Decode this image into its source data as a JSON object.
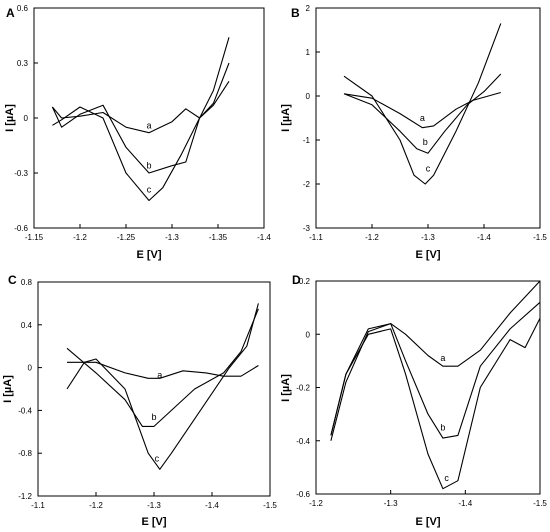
{
  "chart_data": [
    {
      "type": "line",
      "panel_label": "A",
      "xlabel": "E [V]",
      "ylabel": "I [µA]",
      "xlim": [
        -1.15,
        -1.4
      ],
      "ylim": [
        -0.6,
        0.6
      ],
      "xticks": [
        -1.15,
        -1.2,
        -1.25,
        -1.3,
        -1.35,
        -1.4
      ],
      "xtick_labels": [
        "-1.15",
        "-1.2",
        "-1.25",
        "-1.3",
        "-1.35",
        "-1.4"
      ],
      "yticks": [
        -0.6,
        -0.3,
        0,
        0.3,
        0.6
      ],
      "ytick_labels": [
        "-0.6",
        "-0.3",
        "0",
        "0.3",
        "0.6"
      ],
      "series": [
        {
          "name": "a",
          "label_at": [
            -1.275,
            -0.04
          ],
          "x": [
            -1.17,
            -1.18,
            -1.2,
            -1.225,
            -1.25,
            -1.275,
            -1.3,
            -1.315,
            -1.33,
            -1.345,
            -1.362
          ],
          "y": [
            0.06,
            0.0,
            0.01,
            0.03,
            -0.05,
            -0.08,
            -0.02,
            0.05,
            0.0,
            0.07,
            0.2
          ]
        },
        {
          "name": "b",
          "label_at": [
            -1.275,
            -0.26
          ],
          "x": [
            -1.17,
            -1.18,
            -1.2,
            -1.225,
            -1.25,
            -1.275,
            -1.3,
            -1.315,
            -1.33,
            -1.345,
            -1.362
          ],
          "y": [
            0.06,
            -0.05,
            0.02,
            0.07,
            -0.16,
            -0.3,
            -0.26,
            -0.24,
            0.0,
            0.08,
            0.3
          ]
        },
        {
          "name": "c",
          "label_at": [
            -1.275,
            -0.39
          ],
          "x": [
            -1.17,
            -1.18,
            -1.2,
            -1.225,
            -1.25,
            -1.275,
            -1.29,
            -1.31,
            -1.33,
            -1.345,
            -1.362
          ],
          "y": [
            -0.04,
            -0.01,
            0.06,
            0.0,
            -0.3,
            -0.45,
            -0.38,
            -0.2,
            0.0,
            0.15,
            0.44
          ]
        }
      ]
    },
    {
      "type": "line",
      "panel_label": "B",
      "xlabel": "E [V]",
      "ylabel": "I [µA]",
      "xlim": [
        -1.1,
        -1.5
      ],
      "ylim": [
        -3,
        2
      ],
      "xticks": [
        -1.1,
        -1.2,
        -1.3,
        -1.4,
        -1.5
      ],
      "xtick_labels": [
        "-1.1",
        "-1.2",
        "-1.3",
        "-1.4",
        "-1.5"
      ],
      "yticks": [
        -3,
        -2,
        -1,
        0,
        1,
        2
      ],
      "ytick_labels": [
        "-3",
        "-2",
        "-1",
        "0",
        "1",
        "2"
      ],
      "series": [
        {
          "name": "a",
          "label_at": [
            -1.29,
            -0.5
          ],
          "x": [
            -1.15,
            -1.2,
            -1.25,
            -1.29,
            -1.31,
            -1.35,
            -1.38,
            -1.43
          ],
          "y": [
            0.05,
            -0.05,
            -0.4,
            -0.72,
            -0.68,
            -0.3,
            -0.1,
            0.08
          ]
        },
        {
          "name": "b",
          "label_at": [
            -1.295,
            -1.05
          ],
          "x": [
            -1.15,
            -1.2,
            -1.25,
            -1.28,
            -1.3,
            -1.33,
            -1.37,
            -1.4,
            -1.43
          ],
          "y": [
            0.05,
            -0.2,
            -0.8,
            -1.2,
            -1.3,
            -0.8,
            -0.2,
            0.1,
            0.5
          ]
        },
        {
          "name": "c",
          "label_at": [
            -1.3,
            -1.65
          ],
          "x": [
            -1.15,
            -1.2,
            -1.25,
            -1.275,
            -1.295,
            -1.31,
            -1.35,
            -1.39,
            -1.43
          ],
          "y": [
            0.45,
            0.0,
            -1.0,
            -1.8,
            -2.0,
            -1.8,
            -0.8,
            0.3,
            1.65
          ]
        }
      ]
    },
    {
      "type": "line",
      "panel_label": "C",
      "xlabel": "E [V]",
      "ylabel": "I [µA]",
      "xlim": [
        -1.1,
        -1.5
      ],
      "ylim": [
        -1.2,
        0.8
      ],
      "xticks": [
        -1.1,
        -1.2,
        -1.3,
        -1.4,
        -1.5
      ],
      "xtick_labels": [
        "-1.1",
        "-1.2",
        "-1.3",
        "-1.4",
        "-1.5"
      ],
      "yticks": [
        -1.2,
        -0.8,
        -0.4,
        0,
        0.4,
        0.8
      ],
      "ytick_labels": [
        "-1.2",
        "-0.8",
        "-0.4",
        "0",
        "0.4",
        "0.8"
      ],
      "series": [
        {
          "name": "a",
          "label_at": [
            -1.31,
            -0.07
          ],
          "x": [
            -1.15,
            -1.2,
            -1.25,
            -1.29,
            -1.31,
            -1.35,
            -1.39,
            -1.42,
            -1.45,
            -1.48
          ],
          "y": [
            0.05,
            0.05,
            -0.05,
            -0.1,
            -0.1,
            -0.03,
            -0.05,
            -0.08,
            -0.08,
            0.02
          ]
        },
        {
          "name": "b",
          "label_at": [
            -1.3,
            -0.46
          ],
          "x": [
            -1.15,
            -1.2,
            -1.25,
            -1.28,
            -1.3,
            -1.33,
            -1.37,
            -1.42,
            -1.45,
            -1.48
          ],
          "y": [
            0.18,
            -0.05,
            -0.3,
            -0.55,
            -0.55,
            -0.4,
            -0.2,
            -0.05,
            0.15,
            0.55
          ]
        },
        {
          "name": "c",
          "label_at": [
            -1.305,
            -0.85
          ],
          "x": [
            -1.15,
            -1.18,
            -1.2,
            -1.25,
            -1.29,
            -1.31,
            -1.33,
            -1.38,
            -1.43,
            -1.46,
            -1.48
          ],
          "y": [
            -0.2,
            0.05,
            0.08,
            -0.2,
            -0.8,
            -0.95,
            -0.8,
            -0.4,
            0.0,
            0.2,
            0.6
          ]
        }
      ]
    },
    {
      "type": "line",
      "panel_label": "D",
      "xlabel": "E [V]",
      "ylabel": "I [µA]",
      "xlim": [
        -1.2,
        -1.5
      ],
      "ylim": [
        -0.6,
        0.2
      ],
      "xticks": [
        -1.2,
        -1.3,
        -1.4,
        -1.5
      ],
      "xtick_labels": [
        "-1.2",
        "-1.3",
        "-1.4",
        "-1.5"
      ],
      "yticks": [
        -0.6,
        -0.4,
        -0.2,
        0,
        0.2
      ],
      "ytick_labels": [
        "-0.6",
        "-0.4",
        "-0.2",
        "0",
        "0.2"
      ],
      "series": [
        {
          "name": "a",
          "label_at": [
            -1.37,
            -0.09
          ],
          "x": [
            -1.22,
            -1.24,
            -1.27,
            -1.3,
            -1.32,
            -1.35,
            -1.37,
            -1.39,
            -1.42,
            -1.46,
            -1.5
          ],
          "y": [
            -0.38,
            -0.15,
            0.02,
            0.04,
            0.0,
            -0.08,
            -0.12,
            -0.12,
            -0.06,
            0.08,
            0.2
          ]
        },
        {
          "name": "b",
          "label_at": [
            -1.37,
            -0.35
          ],
          "x": [
            -1.22,
            -1.24,
            -1.27,
            -1.3,
            -1.32,
            -1.35,
            -1.37,
            -1.39,
            -1.42,
            -1.46,
            -1.5
          ],
          "y": [
            -0.4,
            -0.18,
            0.01,
            0.04,
            -0.1,
            -0.3,
            -0.39,
            -0.38,
            -0.12,
            0.02,
            0.12
          ]
        },
        {
          "name": "c",
          "label_at": [
            -1.375,
            -0.54
          ],
          "x": [
            -1.22,
            -1.24,
            -1.27,
            -1.3,
            -1.32,
            -1.35,
            -1.37,
            -1.39,
            -1.42,
            -1.46,
            -1.48,
            -1.5
          ],
          "y": [
            -0.38,
            -0.15,
            0.0,
            0.02,
            -0.15,
            -0.45,
            -0.58,
            -0.55,
            -0.2,
            -0.02,
            -0.05,
            0.06
          ]
        }
      ]
    }
  ]
}
